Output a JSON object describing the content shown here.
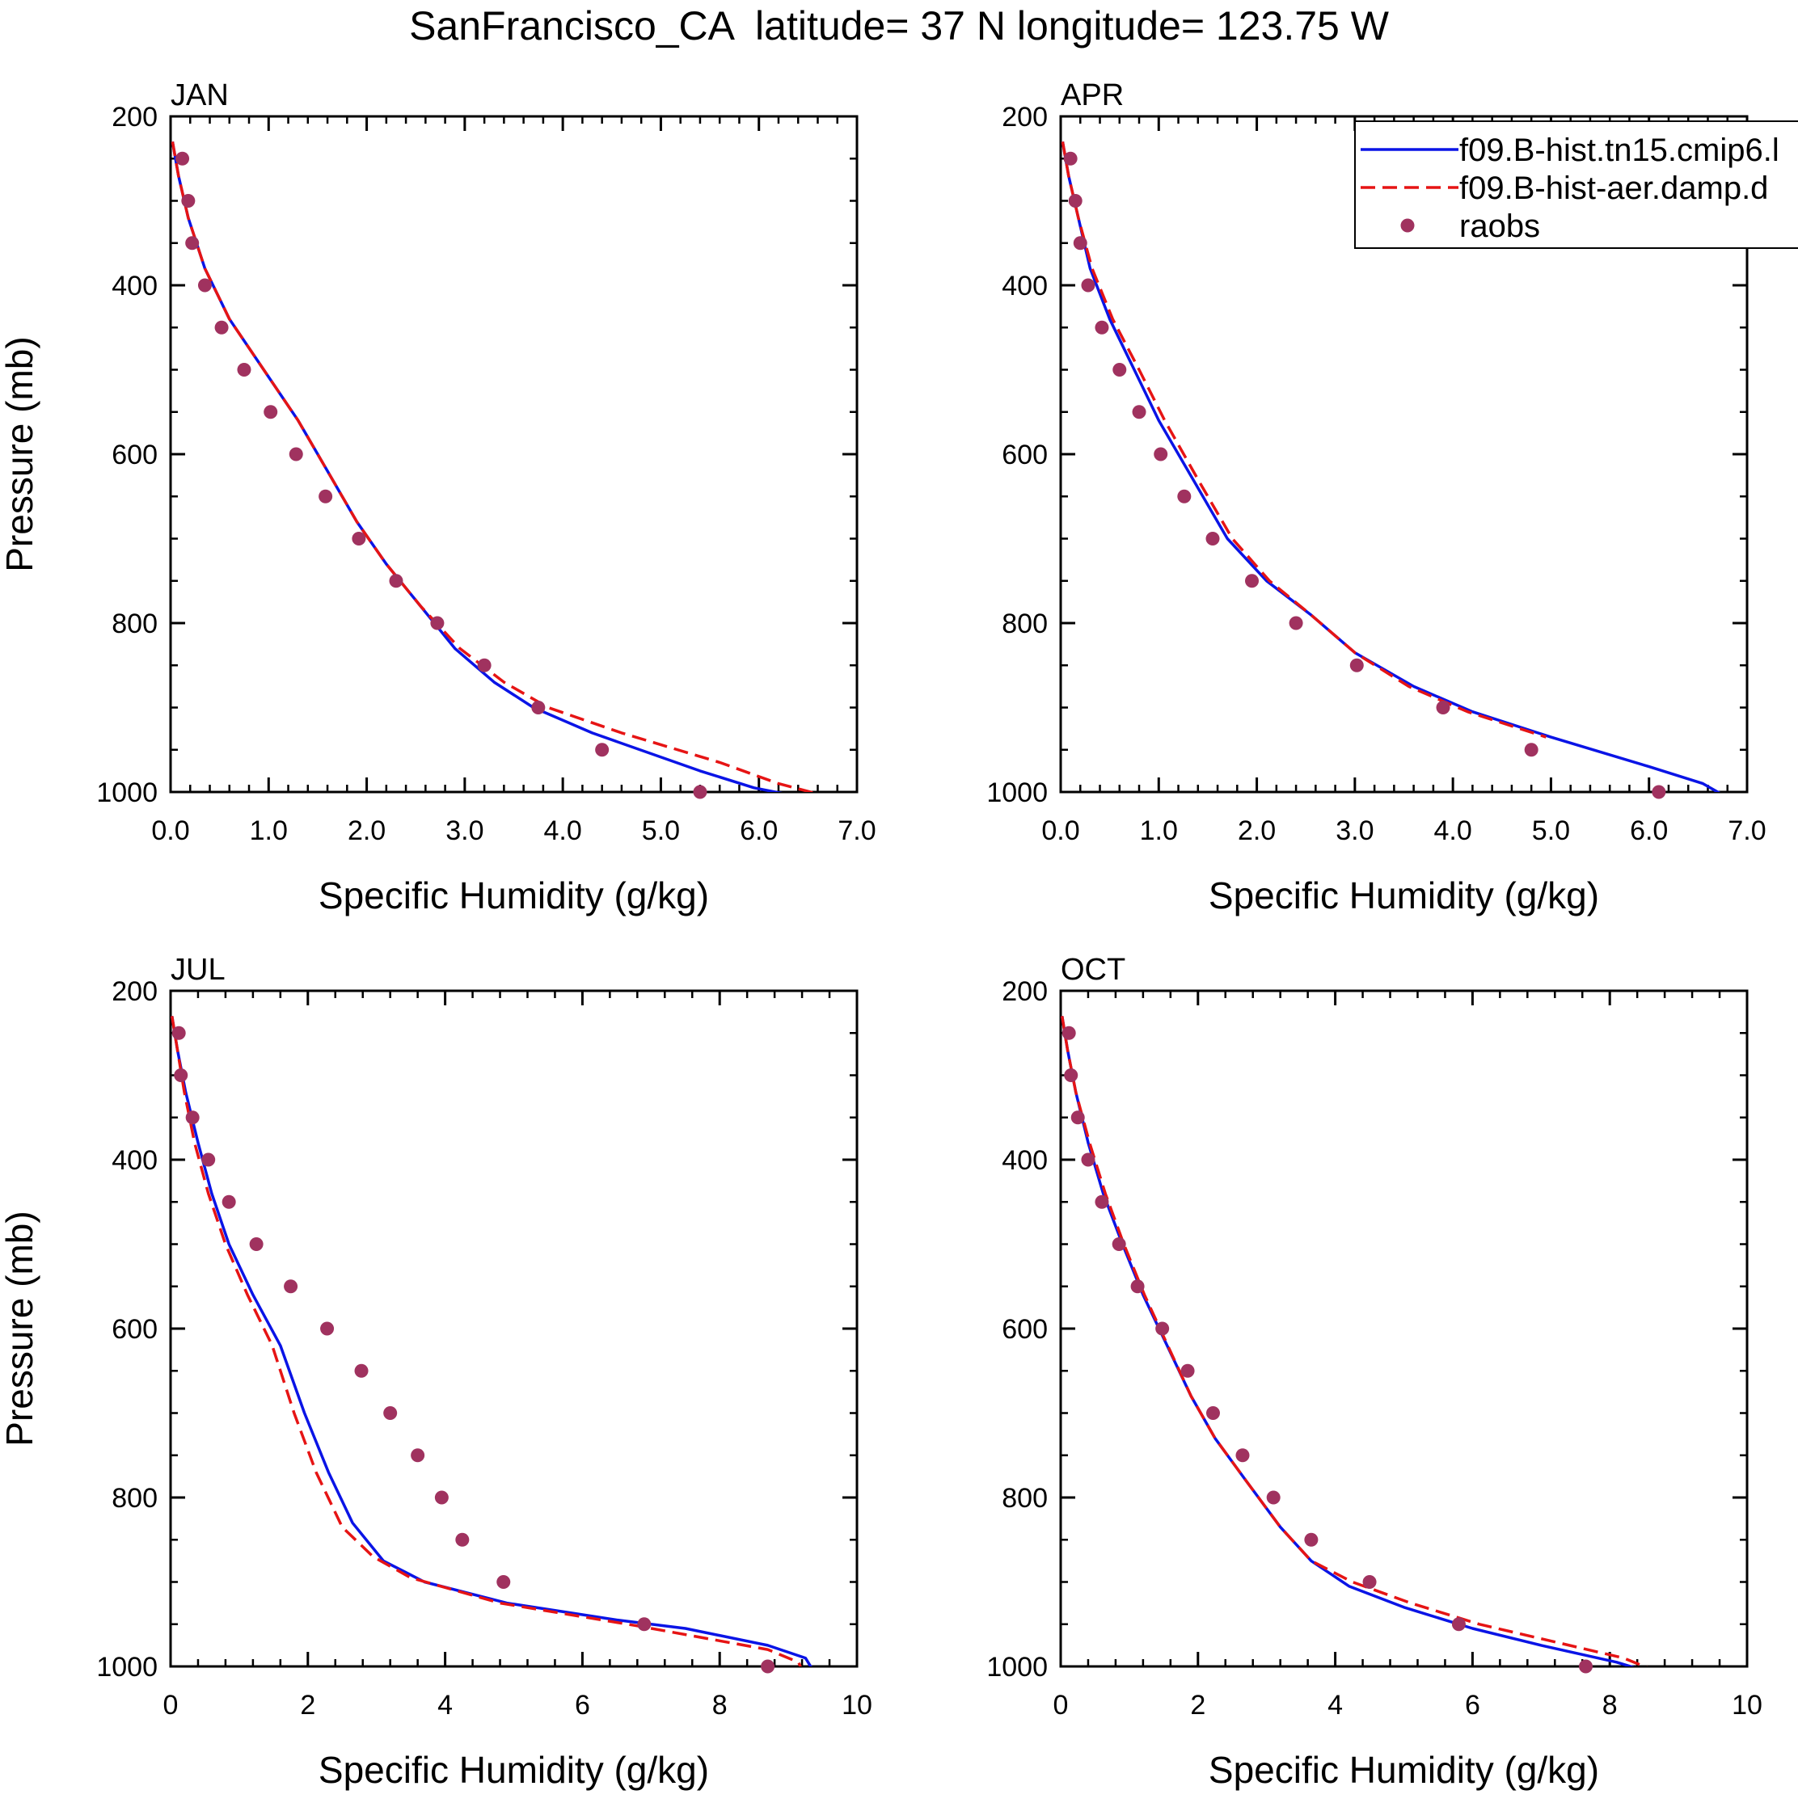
{
  "title": "SanFrancisco_CA  latitude= 37 N longitude= 123.75 W",
  "colors": {
    "model_a": "#0a14e6",
    "model_b": "#e61414",
    "raobs": "#a0325f",
    "axis": "#000000"
  },
  "legend": {
    "entries": [
      {
        "label": "f09.B-hist.tn15.cmip6.l",
        "style": "solid"
      },
      {
        "label": "f09.B-hist-aer.damp.d",
        "style": "dashed"
      },
      {
        "label": "raobs",
        "style": "marker"
      }
    ]
  },
  "chart_data": [
    {
      "type": "line",
      "panel": "JAN",
      "title": "JAN",
      "xlabel": "Specific Humidity (g/kg)",
      "ylabel": "Pressure (mb)",
      "xlim": [
        0,
        7
      ],
      "ylim": [
        200,
        1000
      ],
      "y_inverted": true,
      "xticks": [
        0,
        1,
        2,
        3,
        4,
        5,
        6,
        7
      ],
      "xtick_labels": [
        "0.0",
        "1.0",
        "2.0",
        "3.0",
        "4.0",
        "5.0",
        "6.0",
        "7.0"
      ],
      "yticks": [
        200,
        400,
        600,
        800,
        1000
      ],
      "ytick_labels": [
        "200",
        "400",
        "600",
        "800",
        "1000"
      ],
      "series": [
        {
          "name": "f09.B-hist.tn15.cmip6.l",
          "style": "solid",
          "x": [
            0.02,
            0.08,
            0.18,
            0.35,
            0.6,
            0.95,
            1.3,
            1.6,
            1.9,
            2.2,
            2.55,
            2.9,
            3.3,
            3.7,
            4.3,
            5.4,
            5.95,
            6.6
          ],
          "y": [
            230,
            270,
            320,
            380,
            440,
            500,
            560,
            620,
            680,
            730,
            780,
            830,
            870,
            900,
            930,
            975,
            995,
            1010
          ]
        },
        {
          "name": "f09.B-hist-aer.damp.d",
          "style": "dashed",
          "x": [
            0.02,
            0.08,
            0.18,
            0.35,
            0.6,
            0.95,
            1.3,
            1.6,
            1.9,
            2.2,
            2.55,
            2.95,
            3.4,
            3.85,
            4.6,
            5.6,
            6.2,
            6.85
          ],
          "y": [
            230,
            270,
            320,
            380,
            440,
            500,
            560,
            620,
            680,
            730,
            780,
            830,
            870,
            900,
            930,
            965,
            990,
            1010
          ]
        },
        {
          "name": "raobs",
          "style": "marker",
          "x": [
            0.12,
            0.18,
            0.22,
            0.35,
            0.52,
            0.75,
            1.02,
            1.28,
            1.58,
            1.92,
            2.3,
            2.72,
            3.2,
            3.75,
            4.4,
            5.4
          ],
          "y": [
            250,
            300,
            350,
            400,
            450,
            500,
            550,
            600,
            650,
            700,
            750,
            800,
            850,
            900,
            950,
            1000
          ]
        }
      ]
    },
    {
      "type": "line",
      "panel": "APR",
      "title": "APR",
      "xlabel": "Specific Humidity (g/kg)",
      "ylabel": "",
      "xlim": [
        0,
        7
      ],
      "ylim": [
        200,
        1000
      ],
      "y_inverted": true,
      "xticks": [
        0,
        1,
        2,
        3,
        4,
        5,
        6,
        7
      ],
      "xtick_labels": [
        "0.0",
        "1.0",
        "2.0",
        "3.0",
        "4.0",
        "5.0",
        "6.0",
        "7.0"
      ],
      "yticks": [
        200,
        400,
        600,
        800,
        1000
      ],
      "ytick_labels": [
        "200",
        "400",
        "600",
        "800",
        "1000"
      ],
      "series": [
        {
          "name": "f09.B-hist.tn15.cmip6.l",
          "style": "solid",
          "x": [
            0.02,
            0.08,
            0.18,
            0.3,
            0.5,
            0.75,
            1.0,
            1.35,
            1.7,
            2.1,
            2.55,
            3.0,
            3.6,
            4.2,
            5.0,
            6.0,
            6.55,
            6.85
          ],
          "y": [
            230,
            270,
            320,
            380,
            440,
            500,
            560,
            630,
            700,
            750,
            790,
            835,
            875,
            905,
            935,
            970,
            990,
            1010
          ]
        },
        {
          "name": "f09.B-hist-aer.damp.d",
          "style": "dashed",
          "x": [
            0.02,
            0.08,
            0.18,
            0.32,
            0.53,
            0.8,
            1.06,
            1.4,
            1.75,
            2.13,
            2.55,
            3.0,
            3.55,
            4.15,
            4.95
          ],
          "y": [
            230,
            270,
            320,
            380,
            440,
            500,
            560,
            630,
            700,
            750,
            790,
            835,
            875,
            905,
            935
          ]
        },
        {
          "name": "raobs",
          "style": "marker",
          "x": [
            0.1,
            0.15,
            0.2,
            0.28,
            0.42,
            0.6,
            0.8,
            1.02,
            1.26,
            1.55,
            1.95,
            2.4,
            3.02,
            3.9,
            4.8,
            6.1
          ],
          "y": [
            250,
            300,
            350,
            400,
            450,
            500,
            550,
            600,
            650,
            700,
            750,
            800,
            850,
            900,
            950,
            1000
          ]
        }
      ]
    },
    {
      "type": "line",
      "panel": "JUL",
      "title": "JUL",
      "xlabel": "Specific Humidity (g/kg)",
      "ylabel": "Pressure (mb)",
      "xlim": [
        0,
        10
      ],
      "ylim": [
        200,
        1000
      ],
      "y_inverted": true,
      "xticks": [
        0,
        2,
        4,
        6,
        8,
        10
      ],
      "xtick_labels": [
        "0",
        "2",
        "4",
        "6",
        "8",
        "10"
      ],
      "yticks": [
        200,
        400,
        600,
        800,
        1000
      ],
      "ytick_labels": [
        "200",
        "400",
        "600",
        "800",
        "1000"
      ],
      "series": [
        {
          "name": "f09.B-hist.tn15.cmip6.l",
          "style": "solid",
          "x": [
            0.02,
            0.1,
            0.22,
            0.4,
            0.6,
            0.85,
            1.2,
            1.6,
            1.95,
            2.3,
            2.65,
            3.1,
            3.7,
            4.9,
            6.5,
            7.5,
            8.7,
            9.25,
            9.4
          ],
          "y": [
            230,
            270,
            320,
            380,
            440,
            500,
            560,
            620,
            700,
            770,
            830,
            875,
            900,
            925,
            945,
            955,
            975,
            990,
            1010
          ]
        },
        {
          "name": "f09.B-hist-aer.damp.d",
          "style": "dashed",
          "x": [
            0.02,
            0.1,
            0.2,
            0.35,
            0.55,
            0.8,
            1.12,
            1.48,
            1.8,
            2.12,
            2.5,
            2.95,
            3.5,
            4.8,
            6.8,
            8.7,
            9.15,
            9.25
          ],
          "y": [
            230,
            270,
            320,
            380,
            440,
            500,
            560,
            620,
            700,
            770,
            835,
            870,
            895,
            925,
            952,
            980,
            995,
            1015
          ]
        },
        {
          "name": "raobs",
          "style": "marker",
          "x": [
            0.12,
            0.15,
            0.32,
            0.55,
            0.85,
            1.25,
            1.75,
            2.28,
            2.78,
            3.2,
            3.6,
            3.95,
            4.25,
            4.85,
            6.9,
            8.7
          ],
          "y": [
            250,
            300,
            350,
            400,
            450,
            500,
            550,
            600,
            650,
            700,
            750,
            800,
            850,
            900,
            950,
            1000
          ]
        }
      ]
    },
    {
      "type": "line",
      "panel": "OCT",
      "title": "OCT",
      "xlabel": "Specific Humidity (g/kg)",
      "ylabel": "",
      "xlim": [
        0,
        10
      ],
      "ylim": [
        200,
        1000
      ],
      "y_inverted": true,
      "xticks": [
        0,
        2,
        4,
        6,
        8,
        10
      ],
      "xtick_labels": [
        "0",
        "2",
        "4",
        "6",
        "8",
        "10"
      ],
      "yticks": [
        200,
        400,
        600,
        800,
        1000
      ],
      "ytick_labels": [
        "200",
        "400",
        "600",
        "800",
        "1000"
      ],
      "series": [
        {
          "name": "f09.B-hist.tn15.cmip6.l",
          "style": "solid",
          "x": [
            0.02,
            0.1,
            0.22,
            0.4,
            0.62,
            0.9,
            1.2,
            1.55,
            1.9,
            2.25,
            2.7,
            3.2,
            3.65,
            4.2,
            5.0,
            6.0,
            7.0,
            8.1,
            8.7
          ],
          "y": [
            230,
            270,
            320,
            380,
            440,
            500,
            560,
            620,
            680,
            730,
            780,
            835,
            875,
            905,
            930,
            955,
            975,
            995,
            1010
          ]
        },
        {
          "name": "f09.B-hist-aer.damp.d",
          "style": "dashed",
          "x": [
            0.02,
            0.1,
            0.22,
            0.42,
            0.65,
            0.92,
            1.22,
            1.56,
            1.9,
            2.25,
            2.7,
            3.2,
            3.65,
            4.25,
            5.1,
            6.1,
            7.15,
            8.2,
            8.8
          ],
          "y": [
            230,
            270,
            320,
            380,
            440,
            500,
            560,
            620,
            680,
            730,
            780,
            835,
            875,
            900,
            925,
            950,
            970,
            990,
            1010
          ]
        },
        {
          "name": "raobs",
          "style": "marker",
          "x": [
            0.12,
            0.15,
            0.25,
            0.4,
            0.6,
            0.85,
            1.12,
            1.48,
            1.85,
            2.22,
            2.65,
            3.1,
            3.65,
            4.5,
            5.8,
            7.65
          ],
          "y": [
            250,
            300,
            350,
            400,
            450,
            500,
            550,
            600,
            650,
            700,
            750,
            800,
            850,
            900,
            950,
            1000
          ]
        }
      ]
    }
  ]
}
